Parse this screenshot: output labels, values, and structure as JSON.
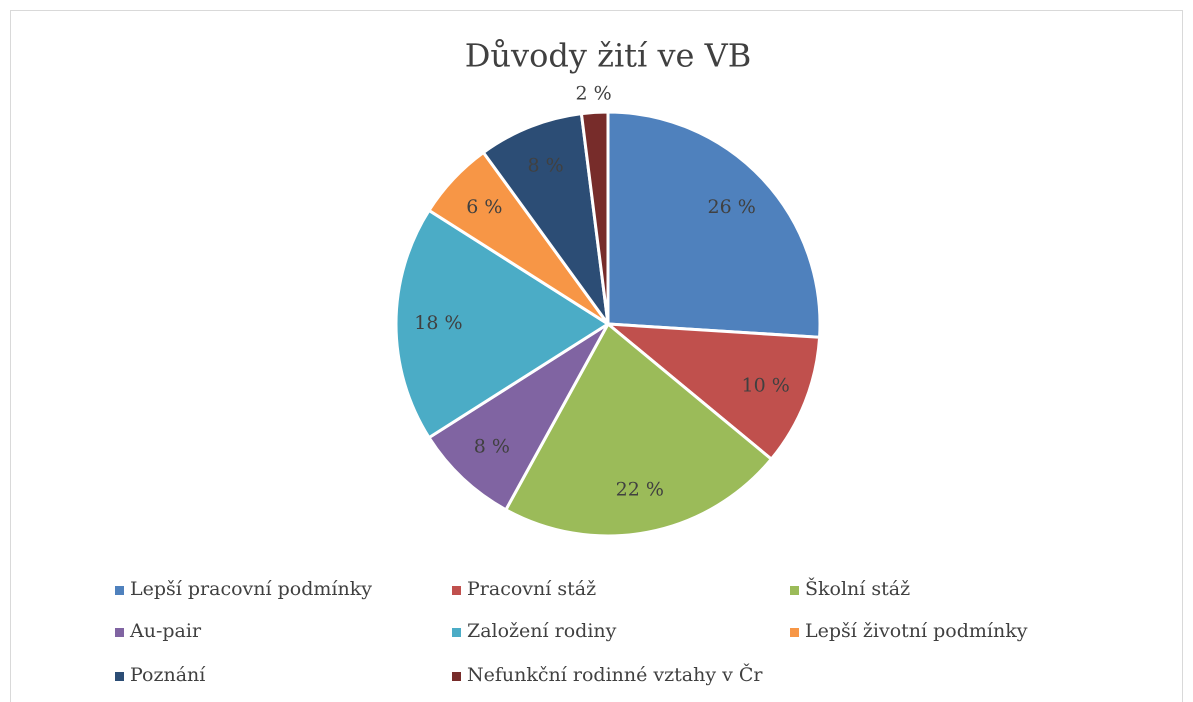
{
  "chart_data": {
    "type": "pie",
    "title": "Důvody žití ve VB",
    "categories": [
      "Lepší pracovní podmínky",
      "Pracovní stáž",
      "Školní stáž",
      "Au-pair",
      "Založení rodiny",
      "Lepší životní podmínky",
      "Poznání",
      "Nefunkční rodinné vztahy v Čr"
    ],
    "values": [
      26,
      10,
      22,
      8,
      18,
      6,
      8,
      2
    ],
    "value_labels": [
      "26 %",
      "10 %",
      "22 %",
      "8 %",
      "18 %",
      "6 %",
      "8 %",
      "2 %"
    ],
    "colors": [
      "#4f81bd",
      "#c0504d",
      "#9bbb59",
      "#8064a2",
      "#4bacc6",
      "#f79646",
      "#2c4d75",
      "#772c2a"
    ],
    "legend": "bottom"
  }
}
